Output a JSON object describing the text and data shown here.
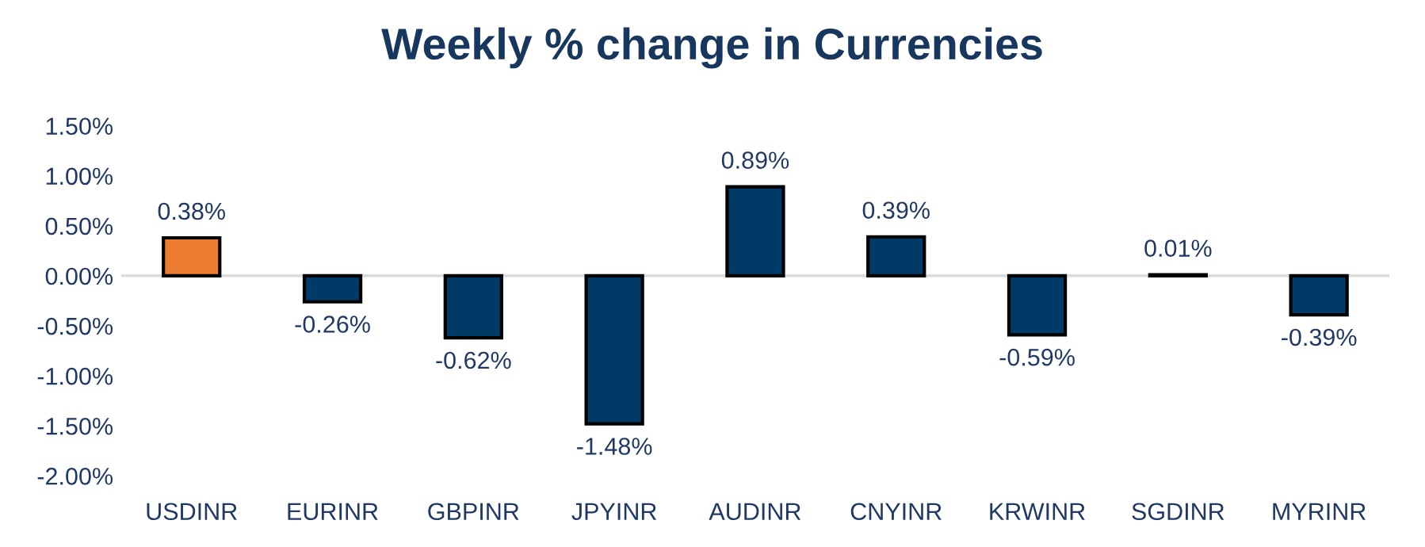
{
  "chart_data": {
    "type": "bar",
    "title": "Weekly % change in Currencies",
    "categories": [
      "USDINR",
      "EURINR",
      "GBPINR",
      "JPYINR",
      "AUDINR",
      "CNYINR",
      "KRWINR",
      "SGDINR",
      "MYRINR"
    ],
    "values": [
      0.38,
      -0.26,
      -0.62,
      -1.48,
      0.89,
      0.39,
      -0.59,
      0.01,
      -0.39
    ],
    "colors": [
      "#ed7d31",
      "#003a66",
      "#003a66",
      "#003a66",
      "#003a66",
      "#003a66",
      "#003a66",
      "#003a66",
      "#003a66"
    ],
    "value_labels": [
      "0.38%",
      "-0.26%",
      "-0.62%",
      "-1.48%",
      "0.89%",
      "0.39%",
      "-0.59%",
      "0.01%",
      "-0.39%"
    ],
    "ylim": [
      -2.0,
      1.5
    ],
    "yticks": [
      {
        "value": -2.0,
        "label": "-2.00%"
      },
      {
        "value": -1.5,
        "label": "-1.50%"
      },
      {
        "value": -1.0,
        "label": "-1.00%"
      },
      {
        "value": -0.5,
        "label": "-0.50%"
      },
      {
        "value": 0.0,
        "label": "0.00%"
      },
      {
        "value": 0.5,
        "label": "0.50%"
      },
      {
        "value": 1.0,
        "label": "1.00%"
      },
      {
        "value": 1.5,
        "label": "1.50%"
      }
    ],
    "ref_lines": [
      {
        "axis": "y",
        "value": 0,
        "color": "#d9d9d9"
      }
    ],
    "grid": false,
    "legend": false
  }
}
